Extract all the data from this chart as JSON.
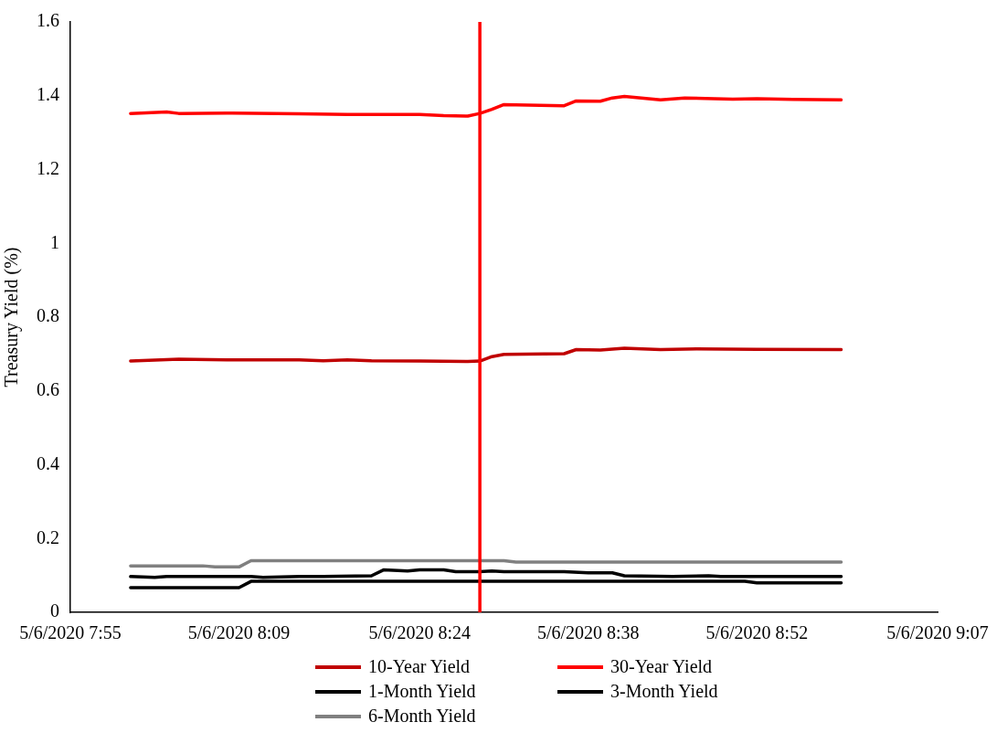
{
  "chart_data": {
    "type": "line",
    "ylabel": "Treasury Yield (%)",
    "xlim": [
      "2020-05-06T07:55",
      "2020-05-06T09:07"
    ],
    "xticks": [
      {
        "value": "2020-05-06T07:55",
        "label": "5/6/2020 7:55"
      },
      {
        "value": "2020-05-06T08:09",
        "label": "5/6/2020 8:09"
      },
      {
        "value": "2020-05-06T08:24",
        "label": "5/6/2020 8:24"
      },
      {
        "value": "2020-05-06T08:38",
        "label": "5/6/2020 8:38"
      },
      {
        "value": "2020-05-06T08:52",
        "label": "5/6/2020 8:52"
      },
      {
        "value": "2020-05-06T09:07",
        "label": "5/6/2020 9:07"
      }
    ],
    "ylim": [
      0,
      1.6
    ],
    "yticks": [
      0,
      0.2,
      0.4,
      0.6,
      0.8,
      1,
      1.2,
      1.4,
      1.6
    ],
    "legend": "bottom",
    "marker": "none",
    "line_style": "solid",
    "ref_lines": [
      {
        "axis": "x",
        "value": "2020-05-06T08:29",
        "color": "#ff0000"
      }
    ],
    "series": [
      {
        "name": "10-Year Yield",
        "color": "#c00000",
        "x": [
          "2020-05-06T08:00",
          "2020-05-06T08:04",
          "2020-05-06T08:08",
          "2020-05-06T08:14",
          "2020-05-06T08:16",
          "2020-05-06T08:18",
          "2020-05-06T08:20",
          "2020-05-06T08:24",
          "2020-05-06T08:28",
          "2020-05-06T08:29",
          "2020-05-06T08:30",
          "2020-05-06T08:31",
          "2020-05-06T08:36",
          "2020-05-06T08:37",
          "2020-05-06T08:39",
          "2020-05-06T08:41",
          "2020-05-06T08:44",
          "2020-05-06T08:47",
          "2020-05-06T08:52",
          "2020-05-06T08:59"
        ],
        "values": [
          0.681,
          0.686,
          0.684,
          0.684,
          0.682,
          0.684,
          0.682,
          0.681,
          0.68,
          0.681,
          0.693,
          0.699,
          0.701,
          0.712,
          0.711,
          0.716,
          0.712,
          0.714,
          0.713,
          0.712
        ]
      },
      {
        "name": "30-Year Yield",
        "color": "#ff0000",
        "x": [
          "2020-05-06T08:00",
          "2020-05-06T08:03",
          "2020-05-06T08:04",
          "2020-05-06T08:08",
          "2020-05-06T08:14",
          "2020-05-06T08:18",
          "2020-05-06T08:24",
          "2020-05-06T08:26",
          "2020-05-06T08:28",
          "2020-05-06T08:29",
          "2020-05-06T08:30",
          "2020-05-06T08:31",
          "2020-05-06T08:36",
          "2020-05-06T08:37",
          "2020-05-06T08:39",
          "2020-05-06T08:40",
          "2020-05-06T08:41",
          "2020-05-06T08:44",
          "2020-05-06T08:46",
          "2020-05-06T08:50",
          "2020-05-06T08:52",
          "2020-05-06T08:55",
          "2020-05-06T08:59"
        ],
        "values": [
          1.352,
          1.356,
          1.352,
          1.353,
          1.351,
          1.349,
          1.349,
          1.346,
          1.345,
          1.352,
          1.363,
          1.376,
          1.373,
          1.386,
          1.385,
          1.394,
          1.398,
          1.389,
          1.394,
          1.391,
          1.392,
          1.39,
          1.389
        ]
      },
      {
        "name": "1-Month Yield",
        "color": "#000000",
        "x": [
          "2020-05-06T08:00",
          "2020-05-06T08:09",
          "2020-05-06T08:10",
          "2020-05-06T08:51",
          "2020-05-06T08:52",
          "2020-05-06T08:59"
        ],
        "values": [
          0.067,
          0.067,
          0.084,
          0.084,
          0.08,
          0.08
        ]
      },
      {
        "name": "3-Month Yield",
        "color": "#000000",
        "x": [
          "2020-05-06T08:00",
          "2020-05-06T08:02",
          "2020-05-06T08:03",
          "2020-05-06T08:10",
          "2020-05-06T08:11",
          "2020-05-06T08:14",
          "2020-05-06T08:16",
          "2020-05-06T08:20",
          "2020-05-06T08:21",
          "2020-05-06T08:23",
          "2020-05-06T08:24",
          "2020-05-06T08:26",
          "2020-05-06T08:27",
          "2020-05-06T08:29",
          "2020-05-06T08:30",
          "2020-05-06T08:31",
          "2020-05-06T08:36",
          "2020-05-06T08:38",
          "2020-05-06T08:40",
          "2020-05-06T08:41",
          "2020-05-06T08:45",
          "2020-05-06T08:48",
          "2020-05-06T08:49",
          "2020-05-06T08:59"
        ],
        "values": [
          0.097,
          0.095,
          0.097,
          0.097,
          0.095,
          0.097,
          0.097,
          0.099,
          0.115,
          0.112,
          0.115,
          0.115,
          0.11,
          0.11,
          0.112,
          0.11,
          0.11,
          0.107,
          0.107,
          0.099,
          0.097,
          0.099,
          0.097,
          0.097
        ]
      },
      {
        "name": "6-Month Yield",
        "color": "#808080",
        "x": [
          "2020-05-06T08:00",
          "2020-05-06T08:06",
          "2020-05-06T08:07",
          "2020-05-06T08:09",
          "2020-05-06T08:10",
          "2020-05-06T08:31",
          "2020-05-06T08:32",
          "2020-05-06T08:59"
        ],
        "values": [
          0.126,
          0.126,
          0.123,
          0.123,
          0.14,
          0.14,
          0.136,
          0.136
        ]
      }
    ]
  }
}
